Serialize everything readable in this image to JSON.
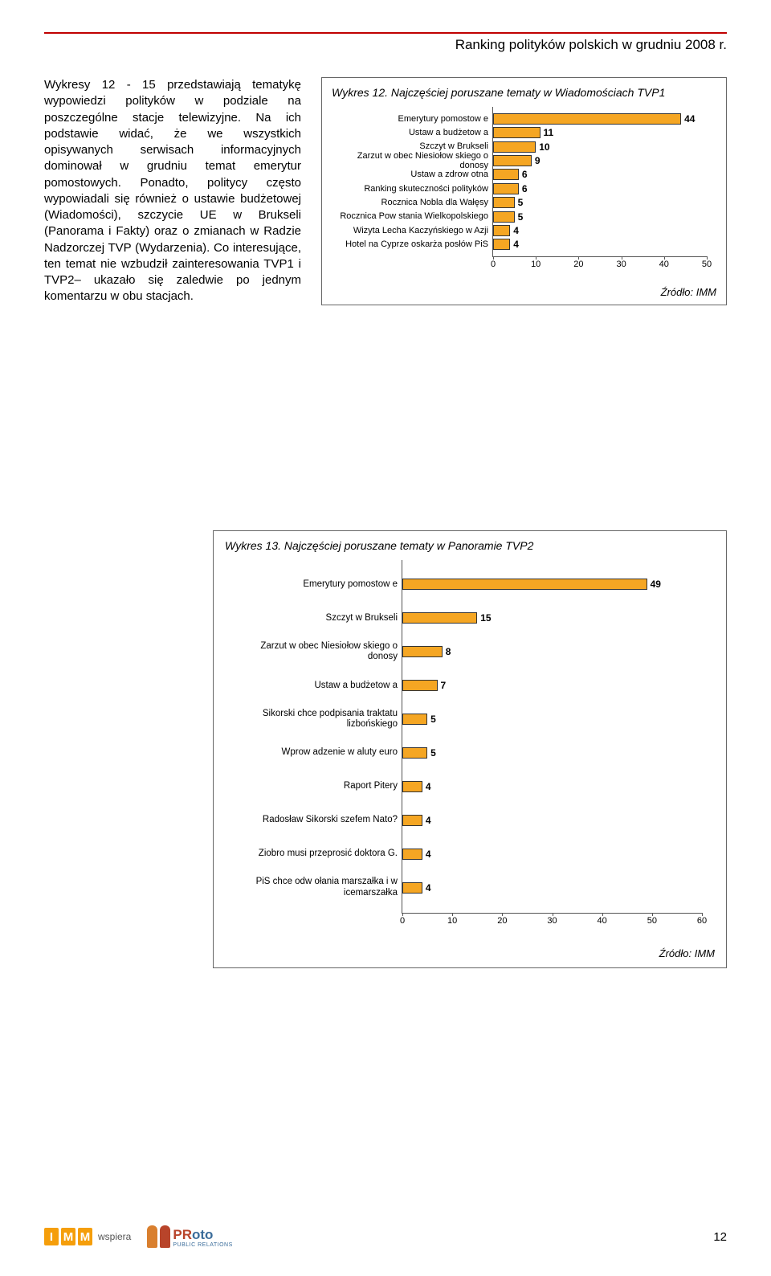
{
  "header": {
    "title": "Ranking polityków polskich w grudniu 2008 r."
  },
  "body_text": "Wykresy 12 - 15 przedstawiają tematykę wypowiedzi polityków w podziale na poszczególne stacje telewizyjne. Na ich podstawie widać, że we wszystkich opisywanych serwisach informacyjnych dominował w grudniu temat emerytur pomostowych. Ponadto, politycy często wypowiadali się również o ustawie budżetowej (Wiadomości), szczycie UE w Brukseli (Panorama i Fakty) oraz o zmianach w Radzie Nadzorczej TVP (Wydarzenia). Co interesujące, ten temat nie wzbudził zainteresowania TVP1 i TVP2– ukazało się zaledwie po jednym komentarzu w obu stacjach.",
  "chart12": {
    "title": "Wykres 12. Najczęściej poruszane tematy w Wiadomościach TVP1",
    "max": 50,
    "ticks": [
      0,
      10,
      20,
      30,
      40,
      50
    ],
    "bar_color": "#f5a623",
    "rows": [
      {
        "label": "Emerytury pomostow e",
        "value": 44
      },
      {
        "label": "Ustaw a budżetow a",
        "value": 11
      },
      {
        "label": "Szczyt w Brukseli",
        "value": 10
      },
      {
        "label": "Zarzut w obec Niesiołow skiego o donosy",
        "value": 9
      },
      {
        "label": "Ustaw a zdrow otna",
        "value": 6
      },
      {
        "label": "Ranking skuteczności polityków",
        "value": 6
      },
      {
        "label": "Rocznica Nobla dla Wałęsy",
        "value": 5
      },
      {
        "label": "Rocznica Pow stania Wielkopolskiego",
        "value": 5
      },
      {
        "label": "Wizyta Lecha Kaczyńskiego w Azji",
        "value": 4
      },
      {
        "label": "Hotel na Cyprze oskarża posłów PiS",
        "value": 4
      }
    ],
    "source": "Źródło: IMM"
  },
  "chart13": {
    "title": "Wykres 13. Najczęściej poruszane tematy w Panoramie TVP2",
    "max": 60,
    "ticks": [
      0,
      10,
      20,
      30,
      40,
      50,
      60
    ],
    "bar_color": "#f5a623",
    "rows": [
      {
        "label": "Emerytury pomostow e",
        "value": 49
      },
      {
        "label": "Szczyt w Brukseli",
        "value": 15
      },
      {
        "label": "Zarzut w obec Niesiołow skiego o donosy",
        "value": 8
      },
      {
        "label": "Ustaw a budżetow a",
        "value": 7
      },
      {
        "label": "Sikorski chce podpisania traktatu lizbońskiego",
        "value": 5
      },
      {
        "label": "Wprow adzenie w aluty euro",
        "value": 5
      },
      {
        "label": "Raport Pitery",
        "value": 4
      },
      {
        "label": "Radosław Sikorski szefem Nato?",
        "value": 4
      },
      {
        "label": "Ziobro musi przeprosić doktora G.",
        "value": 4
      },
      {
        "label": "PiS chce odw ołania marszałka i w icemarszałka",
        "value": 4
      }
    ],
    "source": "Źródło: IMM"
  },
  "footer": {
    "imm_letters": [
      "I",
      "M",
      "M"
    ],
    "wspiera": "wspiera",
    "proto_pr": "PR",
    "proto_oto": "oto",
    "proto_sub": "PUBLIC RELATIONS",
    "page": "12",
    "fig_color_1": "#d97f2e",
    "fig_color_2": "#b8442a",
    "pr_color": "#b8442a",
    "oto_color": "#3a6c9a"
  }
}
